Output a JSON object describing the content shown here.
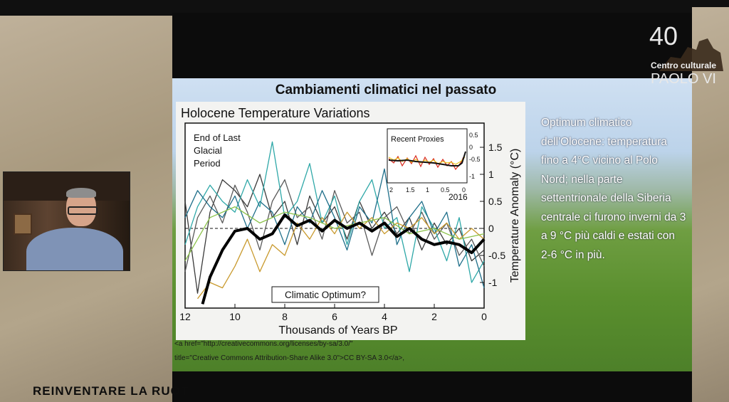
{
  "slide": {
    "title": "Cambiamenti climatici nel passato",
    "side_text": "Optimum climatico dell'Olocene: temperatura fino a 4°C vicino al Polo Nord; nella parte settentrionale della Siberia centrale ci furono inverni da 3 a 9 °C più caldi e estati con 2-6 °C in più.",
    "credit_line1": "<a href=\"http://creativecommons.org/licenses/by-sa/3.0/\"",
    "credit_line2": "title=\"Creative Commons Attribution-Share Alike 3.0\">CC BY-SA 3.0</a>,"
  },
  "logo": {
    "number": "40",
    "line1": "Centro culturale",
    "line2": "PAOLO VI"
  },
  "banner": {
    "text": "REINVENTARE LA RUOT"
  },
  "colors": {
    "slide_sky": "#c9dcef",
    "slide_grass": "#5a8f2e",
    "chart_bg": "#f3f3f1",
    "chart_ink": "#111111"
  },
  "chart_data": {
    "type": "line",
    "title": "Holocene Temperature Variations",
    "xlabel": "Thousands of Years BP",
    "ylabel": "Temperature Anomaly (°C)",
    "xlim": [
      12,
      0
    ],
    "ylim": [
      -1.5,
      2
    ],
    "x_ticks": [
      12,
      10,
      8,
      6,
      4,
      2,
      0
    ],
    "y_ticks": [
      1.5,
      1,
      0.5,
      0,
      -0.5,
      -1
    ],
    "y_tick_labels": [
      "1.5",
      "1",
      "0.5",
      "0",
      "-0.5",
      "-1"
    ],
    "annotations": {
      "period": [
        "End of Last",
        "Glacial",
        "Period"
      ],
      "optimum": "Climatic Optimum?",
      "inset_title": "Recent Proxies",
      "inset_year": "2016",
      "inset_x_ticks": [
        "2",
        "1.5",
        "1",
        "0.5",
        "0"
      ],
      "inset_y_ticks": [
        "0.5",
        "0",
        "-0.5",
        "-1"
      ]
    },
    "series": [
      {
        "role": "average",
        "color": "#000000",
        "x": [
          11.3,
          11,
          10.5,
          10,
          9.5,
          9,
          8.5,
          8,
          7.5,
          7,
          6.5,
          6,
          5.5,
          5,
          4.5,
          4,
          3.5,
          3,
          2.5,
          2,
          1.5,
          1,
          0.5,
          0
        ],
        "y": [
          -1.4,
          -0.9,
          -0.4,
          -0.05,
          0,
          -0.2,
          -0.1,
          0.25,
          0.05,
          0.15,
          -0.05,
          0.15,
          0.0,
          0.1,
          -0.05,
          0.1,
          -0.15,
          0.0,
          -0.2,
          -0.3,
          -0.25,
          -0.3,
          -0.45,
          -0.2
        ]
      },
      {
        "role": "proxy",
        "color": "#3a3a3a",
        "x": [
          12,
          11.5,
          11,
          10.5,
          10,
          9.5,
          9,
          8.5,
          8,
          7.5,
          7,
          6.5,
          6,
          5.5,
          5,
          4.5,
          4,
          3.5,
          3,
          2.5,
          2,
          1.5,
          1,
          0.5,
          0
        ],
        "y": [
          0.5,
          -1.2,
          0.3,
          0.9,
          0.7,
          0.4,
          1.0,
          0.2,
          0.5,
          -0.3,
          0.6,
          0.1,
          0.4,
          -0.2,
          0.5,
          0.0,
          0.3,
          -0.1,
          0.2,
          -0.4,
          0.1,
          -0.3,
          0.0,
          -0.6,
          -0.4
        ]
      },
      {
        "role": "proxy",
        "color": "#5a5a5a",
        "x": [
          12,
          11.5,
          11,
          10.5,
          10,
          9.5,
          9,
          8.5,
          8,
          7.5,
          7,
          6.5,
          6,
          5.5,
          5,
          4.5,
          4,
          3.5,
          3,
          2.5,
          2,
          1.5,
          1,
          0.5,
          0
        ],
        "y": [
          -0.8,
          0.2,
          0.6,
          0.1,
          0.8,
          0.3,
          -0.4,
          0.5,
          0.9,
          0.2,
          0.4,
          -0.2,
          0.7,
          0.1,
          0.3,
          -0.5,
          0.2,
          0.4,
          -0.1,
          0.3,
          -0.2,
          0.1,
          -0.5,
          -0.2,
          -0.7
        ]
      },
      {
        "role": "proxy",
        "color": "#2fa8a8",
        "x": [
          12,
          11.5,
          11,
          10.5,
          10,
          9.5,
          9,
          8.5,
          8,
          7.5,
          7,
          6.5,
          6,
          5.5,
          5,
          4.5,
          4,
          3.5,
          3,
          2.5,
          2,
          1.5,
          1,
          0.5,
          0
        ],
        "y": [
          -0.3,
          0.4,
          0.8,
          0.5,
          0.3,
          0.9,
          0.4,
          1.6,
          0.2,
          0.5,
          1.2,
          0.1,
          0.6,
          -0.3,
          0.5,
          0.9,
          0.0,
          0.2,
          -0.8,
          0.4,
          0.0,
          -0.6,
          0.2,
          -1.0,
          -0.6
        ]
      },
      {
        "role": "proxy",
        "color": "#1f6f8a",
        "x": [
          12,
          11.5,
          11,
          10.5,
          10,
          9.5,
          9,
          8.5,
          8,
          7.5,
          7,
          6.5,
          6,
          5.5,
          5,
          4.5,
          4,
          3.5,
          3,
          2.5,
          2,
          1.5,
          1,
          0.5,
          0
        ],
        "y": [
          0.2,
          0.7,
          0.4,
          0.2,
          0.6,
          0.0,
          0.5,
          0.3,
          -0.3,
          0.4,
          0.1,
          0.7,
          0.2,
          -0.4,
          0.4,
          0.1,
          1.1,
          -0.3,
          0.2,
          0.5,
          -0.1,
          0.3,
          -0.7,
          -0.3,
          -1.1
        ]
      },
      {
        "role": "proxy",
        "color": "#c99a2e",
        "x": [
          11.5,
          11,
          10.5,
          10,
          9.5,
          9,
          8.5,
          8,
          7.5,
          7,
          6.5,
          6,
          5.5,
          5,
          4.5,
          4,
          3.5,
          3,
          2.5,
          2,
          1.5,
          1,
          0.5,
          0
        ],
        "y": [
          -1.3,
          -1.0,
          -1.1,
          -0.7,
          -0.2,
          -0.8,
          -0.3,
          -0.5,
          0.1,
          -0.2,
          0.2,
          -0.1,
          0.3,
          0.0,
          0.2,
          -0.1,
          0.1,
          0.0,
          0.2,
          -0.1,
          0.1,
          -0.2,
          0.0,
          -0.2
        ]
      },
      {
        "role": "proxy",
        "color": "#8cc24a",
        "x": [
          12,
          11,
          10,
          9,
          8,
          7,
          6,
          5,
          4,
          3,
          2,
          1,
          0
        ],
        "y": [
          -0.6,
          0.2,
          0.4,
          0.1,
          0.3,
          0.2,
          0.0,
          0.1,
          0.2,
          -0.1,
          0.0,
          -0.2,
          -0.1
        ]
      }
    ]
  }
}
